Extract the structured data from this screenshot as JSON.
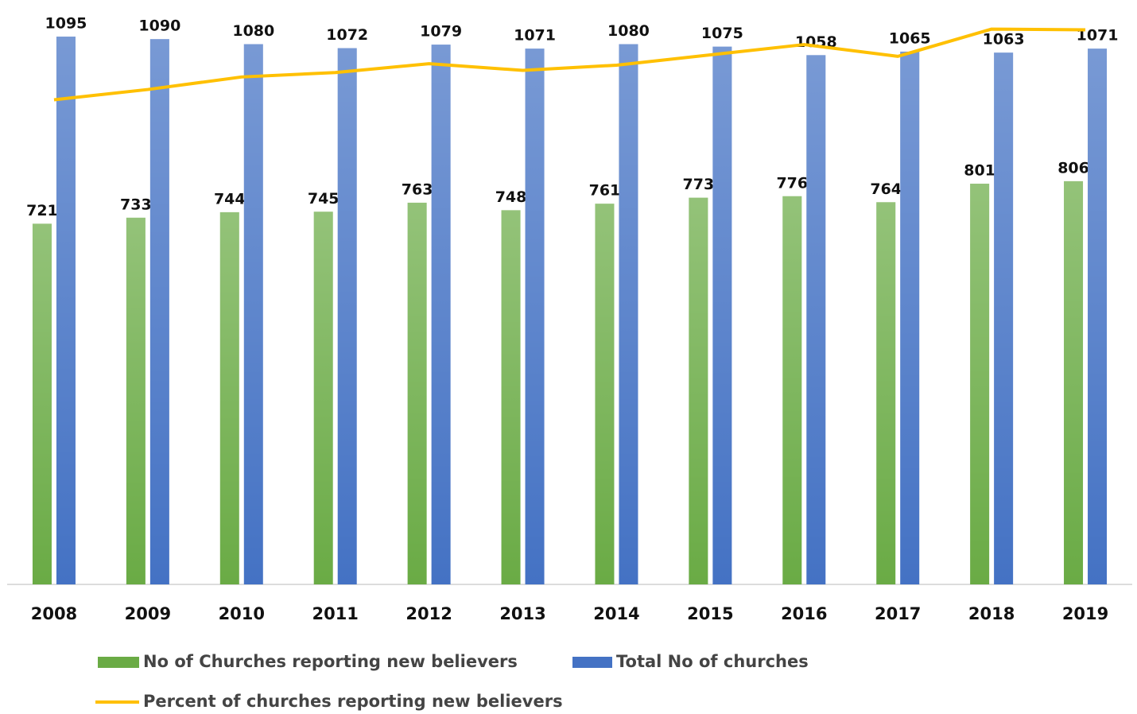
{
  "chart_data": {
    "type": "bar",
    "categories": [
      "2008",
      "2009",
      "2010",
      "2011",
      "2012",
      "2013",
      "2014",
      "2015",
      "2016",
      "2017",
      "2018",
      "2019"
    ],
    "series": [
      {
        "name": "No of Churches reporting new believers",
        "color": "#6aab45",
        "values": [
          721,
          733,
          744,
          745,
          763,
          748,
          761,
          773,
          776,
          764,
          801,
          806
        ]
      },
      {
        "name": "Total No of churches",
        "color": "#4472c4",
        "values": [
          1095,
          1090,
          1080,
          1072,
          1079,
          1071,
          1080,
          1075,
          1058,
          1065,
          1063,
          1071
        ]
      },
      {
        "name": "Percent of churches reporting new believers",
        "color": "#ffc000",
        "type": "line",
        "axis": "y2",
        "values": [
          65.8,
          67.2,
          68.9,
          69.5,
          70.7,
          69.8,
          70.5,
          71.9,
          73.3,
          71.7,
          75.4,
          75.3
        ]
      }
    ],
    "ylim": [
      0,
      1200
    ],
    "y2lim": [
      0,
      80
    ],
    "legend": "bottom"
  }
}
